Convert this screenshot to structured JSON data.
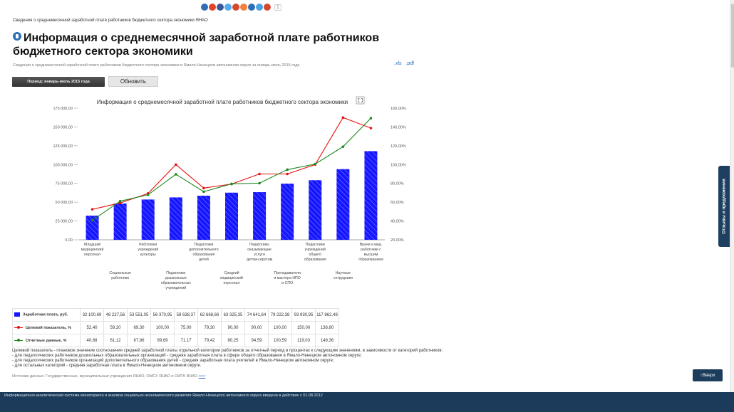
{
  "share": {
    "colors": [
      "#2f6db5",
      "#e0452b",
      "#3b5998",
      "#55acee",
      "#d6482f",
      "#f4803c",
      "#2f6db5",
      "#4aa3df",
      "#d6482f"
    ],
    "count": "1"
  },
  "breadcrumb": "Сведения о среднемесячной заработной плате работников бюджетного сектора экономики ЯНАО",
  "page_title": "Информация о среднемесячной заработной плате работников бюджетного сектора экономики",
  "subtitle": "Сведения о среднемесячной заработной плате работников бюджетного сектора экономики в Ямало-Ненецком автономном округе за январь-июль 2015 года",
  "downloads": {
    "xls": ".xls",
    "pdf": ".pdf"
  },
  "period_label": "Период: январь-июль 2015 года",
  "refresh_label": "Обновить",
  "chart_data": {
    "type": "bar",
    "title": "Информация о среднемесячной заработной плате работников бюджетного сектора экономики",
    "categories": [
      "Младший медицинский персонал",
      "Социальные работники",
      "Работники учреждений культуры",
      "Педагогики дошкольных образовательных учреждений",
      "Педагогики дополнительного образования детей",
      "Средний медицинский персонал",
      "Педагогики, оказывающие услуги детям-сиротам",
      "Преподаватели и мастера НПО и СПО",
      "Педагогики учреждений общего образования",
      "Научные сотрудники",
      "Врачи и мед. работники с высшим образованием"
    ],
    "series": [
      {
        "name": "Заработная плата, руб.",
        "type": "bar",
        "axis": "left",
        "color": "#1515ff",
        "values": [
          32100.69,
          48227.56,
          53551.05,
          56370.95,
          58638.37,
          62668.66,
          63325.35,
          74641.64,
          79222.38,
          93930.95,
          117862.48
        ]
      },
      {
        "name": "Целевой показатель, %",
        "type": "line",
        "axis": "right",
        "color": "#e81010",
        "values": [
          52.4,
          59.2,
          69.3,
          100.0,
          75.0,
          79.3,
          90.0,
          90.0,
          100.0,
          150.0,
          138.8
        ]
      },
      {
        "name": "Отчетные данные, %",
        "type": "line",
        "axis": "right",
        "color": "#1e8a1e",
        "values": [
          40.68,
          61.12,
          67.86,
          89.69,
          71.17,
          79.42,
          80.25,
          94.59,
          100.59,
          119.03,
          149.36
        ]
      }
    ],
    "table_values": {
      "bar": [
        "32 100,69",
        "48 227,56",
        "53 551,05",
        "56 370,95",
        "58 638,37",
        "62 668,66",
        "63 325,35",
        "74 641,64",
        "79 222,38",
        "93 930,95",
        "117 862,48"
      ],
      "target": [
        "52,40",
        "59,20",
        "69,30",
        "100,00",
        "75,00",
        "79,30",
        "90,00",
        "90,00",
        "100,00",
        "150,00",
        "138,80"
      ],
      "actual": [
        "40,68",
        "61,12",
        "67,86",
        "89,69",
        "71,17",
        "79,42",
        "80,25",
        "94,59",
        "100,59",
        "119,03",
        "149,36"
      ]
    },
    "y_left": {
      "min": 0,
      "max": 175000,
      "ticks": [
        "0,00",
        "25 000,00",
        "50 000,00",
        "75 000,00",
        "100 000,00",
        "125 000,00",
        "150 000,00",
        "175 000,00"
      ]
    },
    "y_right": {
      "min": 20,
      "max": 160,
      "ticks": [
        "20,00%",
        "40,00%",
        "60,00%",
        "80,00%",
        "100,00%",
        "120,00%",
        "140,00%",
        "160,00%"
      ]
    },
    "grid": false
  },
  "note_lines": [
    "Целевой показатель - плановое значение соотношения средней заработной платы отдельной категории работников за отчетный период в процентах к следующим значениям, в зависимости от категорий работников:",
    "- для педагогических работников дошкольных образовательных организаций - средняя заработная плата в сфере общего образования в Ямало-Ненецком автономном округе;",
    "- для педагогических работников организаций дополнительного образования детей - средняя заработная плата учителей в Ямало-Ненецком автономном округе;",
    "- для остальных категорий - средняя заработная плата в Ямало-Ненецком автономном округе."
  ],
  "source_label": "Источник данных: Государственные, муниципальные учреждения ЯНАО, ОМСУ ЯНАО и ОИГВ ЯНАО",
  "source_link": ">>>",
  "up_button": "↑Вверх",
  "feedback_tab": "Отзывы и предложения",
  "footer_text": "Информационно-аналитическая система мониторинга и анализа социально-экономического развития Ямало-Ненецкого автономного округа введена в действие с 01.08.2012"
}
